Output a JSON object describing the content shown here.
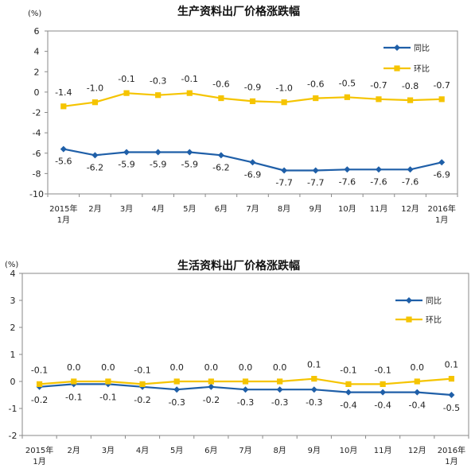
{
  "chart_data": [
    {
      "type": "line",
      "title": "生产资料出厂价格涨跌幅",
      "unit": "(%)",
      "x": [
        "2015年1月",
        "2月",
        "3月",
        "4月",
        "5月",
        "6月",
        "7月",
        "8月",
        "9月",
        "10月",
        "11月",
        "12月",
        "2016年1月"
      ],
      "ylim": [
        -10,
        6
      ],
      "yticks": [
        -10,
        -8,
        -6,
        -4,
        -2,
        0,
        2,
        4,
        6
      ],
      "legend_position": "top-right",
      "series": [
        {
          "name": "同比",
          "color": "#1f5fa8",
          "marker": "diamond",
          "label_position": "below",
          "values": [
            -5.6,
            -6.2,
            -5.9,
            -5.9,
            -5.9,
            -6.2,
            -6.9,
            -7.7,
            -7.7,
            -7.6,
            -7.6,
            -7.6,
            -6.9
          ],
          "labels": [
            "-5.6",
            "-6.2",
            "-5.9",
            "-5.9",
            "-5.9",
            "-6.2",
            "-6.9",
            "-7.7",
            "-7.7",
            "-7.6",
            "-7.6",
            "-7.6",
            "-6.9"
          ]
        },
        {
          "name": "环比",
          "color": "#f5c400",
          "marker": "square",
          "label_position": "above",
          "values": [
            -1.4,
            -1.0,
            -0.1,
            -0.3,
            -0.1,
            -0.6,
            -0.9,
            -1.0,
            -0.6,
            -0.5,
            -0.7,
            -0.8,
            -0.7
          ],
          "labels": [
            "-1.4",
            "-1.0",
            "-0.1",
            "-0.3",
            "-0.1",
            "-0.6",
            "-0.9",
            "-1.0",
            "-0.6",
            "-0.5",
            "-0.7",
            "-0.8",
            "-0.7"
          ]
        }
      ]
    },
    {
      "type": "line",
      "title": "生活资料出厂价格涨跌幅",
      "unit": "(%)",
      "x": [
        "2015年1月",
        "2月",
        "3月",
        "4月",
        "5月",
        "6月",
        "7月",
        "8月",
        "9月",
        "10月",
        "11月",
        "12月",
        "2016年1月"
      ],
      "ylim": [
        -2,
        4
      ],
      "yticks": [
        -2,
        -1,
        0,
        1,
        2,
        3,
        4
      ],
      "legend_position": "top-right",
      "series": [
        {
          "name": "同比",
          "color": "#1f5fa8",
          "marker": "diamond",
          "label_position": "below",
          "values": [
            -0.2,
            -0.1,
            -0.1,
            -0.2,
            -0.3,
            -0.2,
            -0.3,
            -0.3,
            -0.3,
            -0.4,
            -0.4,
            -0.4,
            -0.5
          ],
          "labels": [
            "-0.2",
            "-0.1",
            "-0.1",
            "-0.2",
            "-0.3",
            "-0.2",
            "-0.3",
            "-0.3",
            "-0.3",
            "-0.4",
            "-0.4",
            "-0.4",
            "-0.5"
          ]
        },
        {
          "name": "环比",
          "color": "#f5c400",
          "marker": "square",
          "label_position": "above",
          "values": [
            -0.1,
            0.0,
            0.0,
            -0.1,
            0.0,
            0.0,
            0.0,
            0.0,
            0.1,
            -0.1,
            -0.1,
            0.0,
            0.1
          ],
          "labels": [
            "-0.1",
            "0.0",
            "0.0",
            "-0.1",
            "0.0",
            "0.0",
            "0.0",
            "0.0",
            "0.1",
            "-0.1",
            "-0.1",
            "0.0",
            "0.1"
          ]
        }
      ]
    }
  ]
}
